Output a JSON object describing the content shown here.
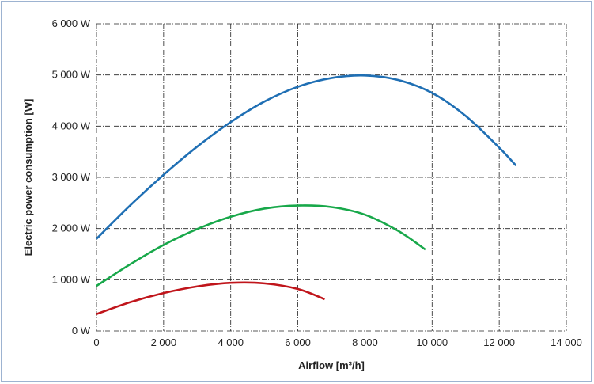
{
  "chart_data": {
    "type": "line",
    "title": "",
    "xlabel": "Airflow [m³/h]",
    "ylabel": "Electric power consumption [W]",
    "xlim": [
      0,
      14000
    ],
    "ylim": [
      0,
      6000
    ],
    "x_ticks": [
      0,
      2000,
      4000,
      6000,
      8000,
      10000,
      12000,
      14000
    ],
    "x_tick_labels": [
      "0",
      "2 000",
      "4 000",
      "6 000",
      "8 000",
      "10 000",
      "12 000",
      "14 000"
    ],
    "y_ticks": [
      0,
      1000,
      2000,
      3000,
      4000,
      5000,
      6000
    ],
    "y_tick_labels": [
      "0 W",
      "1 000 W",
      "2 000 W",
      "3 000 W",
      "4 000 W",
      "5 000 W",
      "6 000 W"
    ],
    "grid": true,
    "grid_style": "dash-dot",
    "legend": "none",
    "series": [
      {
        "color": "#1f6fb4",
        "x": [
          0,
          1000,
          2000,
          3000,
          4000,
          5000,
          6000,
          7000,
          8000,
          9000,
          10000,
          11000,
          12000,
          12500
        ],
        "y": [
          1800,
          2450,
          3050,
          3600,
          4080,
          4480,
          4770,
          4940,
          4990,
          4900,
          4650,
          4200,
          3580,
          3230
        ]
      },
      {
        "color": "#18a84a",
        "x": [
          0,
          1000,
          2000,
          3000,
          4000,
          5000,
          6000,
          7000,
          8000,
          9000,
          9800
        ],
        "y": [
          880,
          1300,
          1680,
          1990,
          2230,
          2390,
          2450,
          2420,
          2270,
          1950,
          1590
        ]
      },
      {
        "color": "#c0151b",
        "x": [
          0,
          1000,
          2000,
          3000,
          4000,
          5000,
          6000,
          6800
        ],
        "y": [
          330,
          560,
          740,
          870,
          940,
          930,
          820,
          620
        ]
      }
    ]
  }
}
